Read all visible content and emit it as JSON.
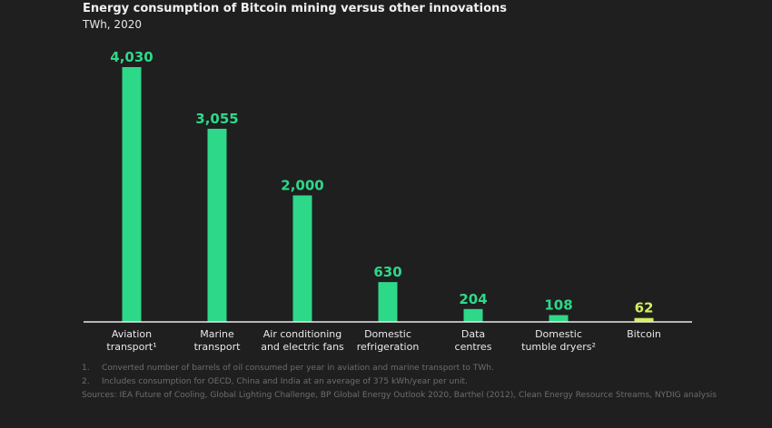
{
  "colors": {
    "background": "#1f1f1f",
    "bar": "#2ed889",
    "highlight_bar": "#d2ef5e",
    "value_label": "#2ed889",
    "highlight_value_label": "#d2ef5e",
    "baseline": "#e8e8e8",
    "text": "#e8e8e8",
    "footnote": "#6d6d6d"
  },
  "chart_data": {
    "type": "bar",
    "title": "Energy consumption of Bitcoin mining versus other innovations",
    "subtitle": "TWh, 2020",
    "categories": [
      [
        "Aviation",
        "transport¹"
      ],
      [
        "Marine",
        "transport"
      ],
      [
        "Air conditioning",
        "and electric fans"
      ],
      [
        "Domestic",
        "refrigeration"
      ],
      [
        "Data",
        "centres"
      ],
      [
        "Domestic",
        "tumble dryers²"
      ],
      [
        "Bitcoin"
      ]
    ],
    "values": [
      4030,
      3055,
      2000,
      630,
      204,
      108,
      62
    ],
    "value_labels": [
      "4,030",
      "3,055",
      "2,000",
      "630",
      "204",
      "108",
      "62"
    ],
    "highlight_index": 6,
    "ylim": [
      0,
      4030
    ],
    "grid": false,
    "legend": "none"
  },
  "footnotes": [
    {
      "num": "1.",
      "text": "Converted number of barrels of oil consumed per year in aviation and marine transport to TWh."
    },
    {
      "num": "2.",
      "text": "Includes consumption for OECD, China and India at an average of 375 kWh/year per unit."
    }
  ],
  "sources": "Sources: IEA Future of Cooling, Global Lighting Challenge, BP Global Energy Outlook 2020, Barthel (2012), Clean Energy Resource Streams, NYDIG analysis"
}
